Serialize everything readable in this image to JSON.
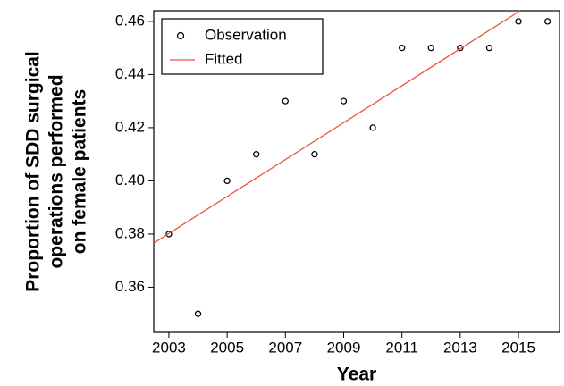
{
  "chart_data": {
    "type": "scatter",
    "xlabel": "Year",
    "ylabel": [
      "Proportion of SDD surgical",
      "operations performed",
      "on female patients"
    ],
    "xlim": [
      2002.48,
      2016.41
    ],
    "ylim": [
      0.343,
      0.464
    ],
    "xticks": [
      2003,
      2005,
      2007,
      2009,
      2011,
      2013,
      2015
    ],
    "yticks": [
      0.36,
      0.38,
      0.4,
      0.42,
      0.44,
      0.46
    ],
    "legend": "top-left",
    "series": [
      {
        "name": "Observation",
        "color": "#000000",
        "marker": "circle",
        "x": [
          2003,
          2004,
          2005,
          2006,
          2007,
          2008,
          2009,
          2010,
          2011,
          2012,
          2013,
          2014,
          2015,
          2016
        ],
        "values": [
          0.38,
          0.35,
          0.4,
          0.41,
          0.43,
          0.41,
          0.43,
          0.42,
          0.45,
          0.45,
          0.45,
          0.45,
          0.46,
          0.46
        ]
      },
      {
        "name": "Fitted",
        "color": "#e8553c",
        "marker": "line",
        "x": [
          2002.48,
          2015.06
        ],
        "values": [
          0.3766,
          0.464
        ]
      }
    ]
  }
}
